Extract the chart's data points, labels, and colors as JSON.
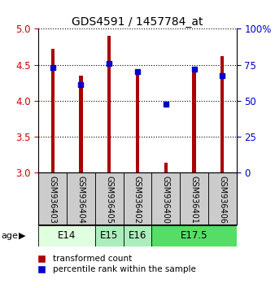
{
  "title": "GDS4591 / 1457784_at",
  "samples": [
    "GSM936403",
    "GSM936404",
    "GSM936405",
    "GSM936402",
    "GSM936400",
    "GSM936401",
    "GSM936406"
  ],
  "red_values": [
    4.72,
    4.35,
    4.9,
    4.4,
    3.14,
    4.45,
    4.62
  ],
  "blue_values": [
    4.46,
    4.23,
    4.52,
    4.41,
    3.95,
    4.44,
    4.35
  ],
  "ylim": [
    3.0,
    5.0
  ],
  "yticks_left": [
    3.0,
    3.5,
    4.0,
    4.5,
    5.0
  ],
  "yticks_right": [
    0,
    25,
    50,
    75,
    100
  ],
  "age_groups": [
    {
      "label": "E14",
      "cols": [
        0,
        1
      ],
      "color": "#e0ffe0"
    },
    {
      "label": "E15",
      "cols": [
        2
      ],
      "color": "#aaeebb"
    },
    {
      "label": "E16",
      "cols": [
        3
      ],
      "color": "#aaeebb"
    },
    {
      "label": "E17.5",
      "cols": [
        4,
        5,
        6
      ],
      "color": "#55dd66"
    }
  ],
  "bar_color": "#aa0000",
  "dot_color": "#0000cc",
  "sample_bg_color": "#cccccc",
  "left_tick_color": "#cc0000",
  "right_tick_color": "#0000cc",
  "bar_width": 0.12
}
